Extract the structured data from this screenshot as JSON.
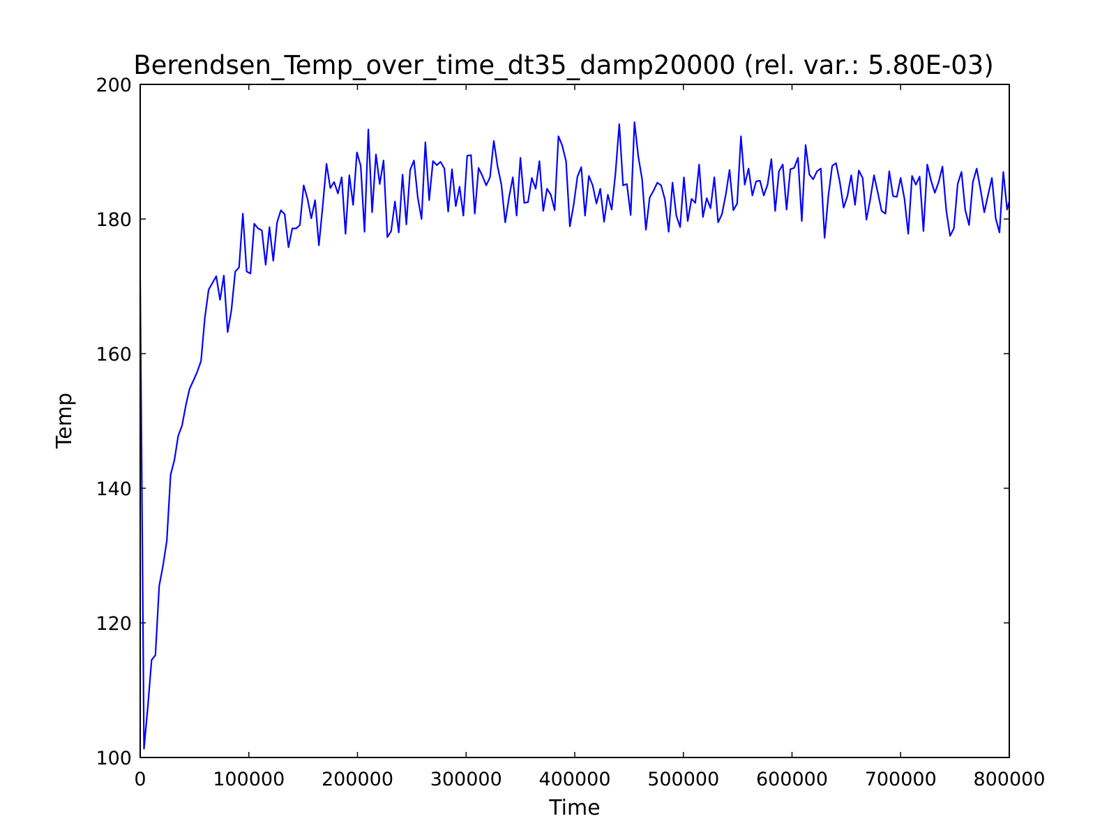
{
  "chart_data": {
    "type": "line",
    "title": "Berendsen_Temp_over_time_dt35_damp20000 (rel. var.: 5.80E-03)",
    "xlabel": "Time",
    "ylabel": "Temp",
    "xlim": [
      0,
      800000
    ],
    "ylim": [
      100,
      200
    ],
    "x_ticks": [
      0,
      100000,
      200000,
      300000,
      400000,
      500000,
      600000,
      700000,
      800000
    ],
    "x_tick_labels": [
      "0",
      "100000",
      "200000",
      "300000",
      "400000",
      "500000",
      "600000",
      "700000",
      "800000"
    ],
    "y_ticks": [
      100,
      120,
      140,
      160,
      180,
      200
    ],
    "y_tick_labels": [
      "100",
      "120",
      "140",
      "160",
      "180",
      "200"
    ],
    "grid": false,
    "line_color": "#0000ff",
    "series": [
      {
        "x": [
          0,
          3500,
          7000,
          10500,
          14000,
          17500,
          21000,
          24500,
          28000,
          31500,
          35000,
          38500,
          42000,
          45500,
          49000,
          52500,
          56000,
          59500,
          63000,
          66500,
          70000,
          73500,
          77000,
          80500,
          84000,
          87500,
          91000,
          94500,
          98000,
          101500,
          105000,
          108500,
          112000,
          115500,
          119000,
          122500,
          126000,
          129500,
          133000,
          136500,
          140000,
          143500,
          147000,
          150500,
          154000,
          157500,
          161000,
          164500,
          168000,
          171500,
          175000,
          178500,
          182000,
          185500,
          189000,
          192500,
          196000,
          199500,
          203000,
          206500,
          210000,
          213500,
          217000,
          220500,
          224000,
          227500,
          231000,
          234500,
          238000,
          241500,
          245000,
          248500,
          252000,
          255500,
          259000,
          262500,
          266000,
          269500,
          273000,
          276500,
          280000,
          283500,
          287000,
          290500,
          294000,
          297500,
          301000,
          304500,
          308000,
          311500,
          315000,
          318500,
          322000,
          325500,
          329000,
          332500,
          336000,
          339500,
          343000,
          346500,
          350000,
          353500,
          357000,
          360500,
          364000,
          367500,
          371000,
          374500,
          378000,
          381500,
          385000,
          388500,
          392000,
          395500,
          399000,
          402500,
          406000,
          409500,
          413000,
          416500,
          420000,
          423500,
          427000,
          430500,
          434000,
          437500,
          441000,
          444500,
          448000,
          451500,
          455000,
          458500,
          462000,
          465500,
          469000,
          472500,
          476000,
          479500,
          483000,
          486500,
          490000,
          493500,
          497000,
          500500,
          504000,
          507500,
          511000,
          514500,
          518000,
          521500,
          525000,
          528500,
          532000,
          535500,
          539000,
          542500,
          546000,
          549500,
          553000,
          556500,
          560000,
          563500,
          567000,
          570500,
          574000,
          577500,
          581000,
          584500,
          588000,
          591500,
          595000,
          598500,
          602000,
          605500,
          609000,
          612500,
          616000,
          619500,
          623000,
          626500,
          630000,
          633500,
          637000,
          640500,
          644000,
          647500,
          651000,
          654500,
          658000,
          661500,
          665000,
          668500,
          672000,
          675500,
          679000,
          682500,
          686000,
          689500,
          693000,
          696500,
          700000,
          703500,
          707000,
          710500,
          714000,
          717500,
          721000,
          724500,
          728000,
          731500,
          735000,
          738500,
          742000,
          745500,
          749000,
          752500,
          756000,
          759500,
          763000,
          766500,
          770000,
          773500,
          777000,
          780500,
          784000,
          787500,
          791000,
          794500,
          798000,
          800000
        ],
        "y": [
          171,
          101.3,
          107.5,
          114.5,
          115.2,
          125.5,
          128.5,
          132.2,
          142,
          144.2,
          147.8,
          149.3,
          152.3,
          154.8,
          156,
          157.3,
          158.9,
          165.3,
          169.5,
          170.5,
          171.5,
          168,
          171.6,
          163.2,
          166.5,
          172.2,
          172.8,
          180.8,
          172.2,
          171.9,
          179.3,
          178.6,
          178.3,
          173.2,
          178.8,
          173.8,
          179.5,
          181.3,
          180.7,
          175.8,
          178.6,
          178.6,
          179.1,
          185,
          183,
          180.1,
          182.8,
          176.1,
          181.9,
          188.2,
          184.6,
          185.5,
          183.8,
          186.2,
          177.8,
          186.5,
          182.1,
          189.9,
          187.9,
          178.1,
          193.3,
          181,
          189.6,
          185.2,
          188.7,
          177.3,
          178.2,
          182.6,
          178,
          186.6,
          179.2,
          187.3,
          188.7,
          183.2,
          180,
          191.4,
          182.8,
          188.6,
          188,
          188.5,
          187.5,
          181.1,
          187.4,
          181.9,
          184.8,
          180.5,
          189.4,
          189.5,
          180.8,
          187.6,
          186.4,
          185,
          186.2,
          191.6,
          187.8,
          185.1,
          179.5,
          183.2,
          186.2,
          180.5,
          189.1,
          182.4,
          182.5,
          186.1,
          184.5,
          188.6,
          181.2,
          184.5,
          183.6,
          181.3,
          192.3,
          190.9,
          188.6,
          178.9,
          182.1,
          186.3,
          187.7,
          180.5,
          186.4,
          185,
          182.3,
          184.5,
          179.6,
          183.6,
          181.4,
          186.8,
          194.1,
          185,
          185.2,
          180.6,
          194.4,
          189.3,
          185.9,
          178.4,
          183.2,
          184.2,
          185.4,
          185,
          182.9,
          178.1,
          185.4,
          180.5,
          178.8,
          186.2,
          179.7,
          183,
          182.4,
          188.1,
          180.3,
          183.1,
          181.6,
          186.2,
          179.5,
          180.7,
          183.6,
          187.3,
          181.3,
          182.3,
          192.3,
          185.1,
          187.5,
          183.5,
          185.6,
          185.7,
          183.5,
          185.1,
          188.9,
          181.2,
          187.1,
          188.1,
          181.4,
          187.4,
          187.6,
          189.1,
          179.7,
          191,
          186.6,
          185.9,
          187.1,
          187.5,
          177.2,
          183.5,
          187.9,
          188.3,
          185.5,
          181.7,
          183.4,
          186.5,
          182.1,
          187.2,
          186.1,
          179.9,
          182.9,
          186.5,
          183.9,
          181.2,
          180.8,
          187.1,
          183.4,
          183.3,
          186.1,
          183,
          177.8,
          186.4,
          185.1,
          186.3,
          178.2,
          188.1,
          185.7,
          183.9,
          185.5,
          187.8,
          181.3,
          177.5,
          178.6,
          185.2,
          187,
          181.3,
          179.1,
          185.5,
          187.5,
          184.4,
          181,
          183.6,
          186.1,
          180.1,
          178,
          187,
          181.4,
          182.6
        ]
      }
    ]
  }
}
